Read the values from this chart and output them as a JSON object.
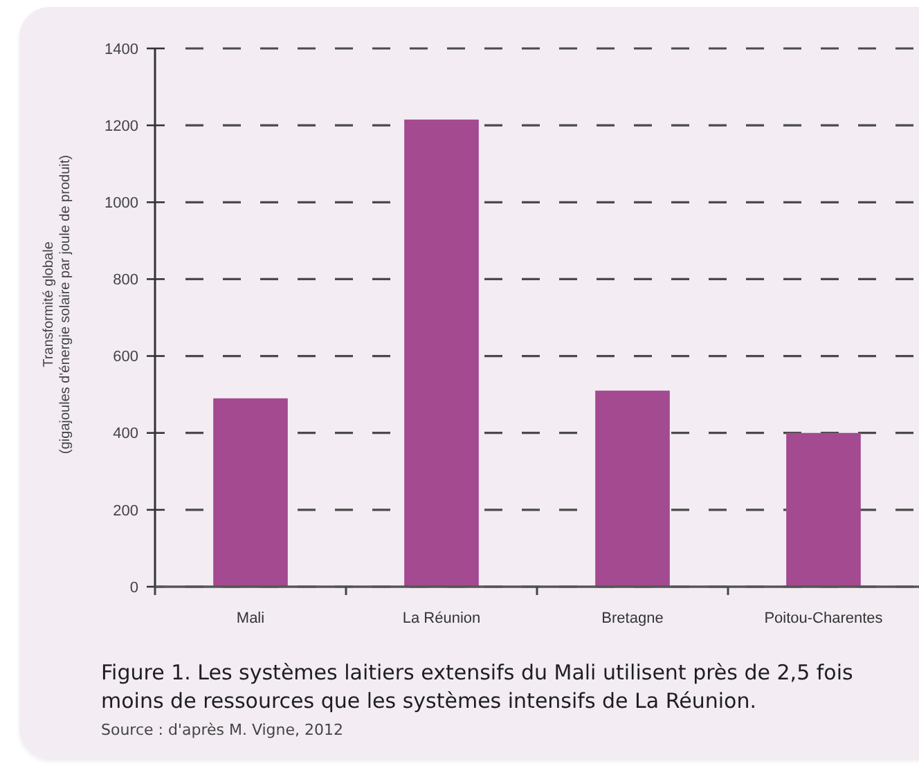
{
  "chart_data": {
    "type": "bar",
    "title": "Figure 1. Les systèmes laitiers extensifs du Mali utilisent près de 2,5 fois moins de ressources que les systèmes intensifs de La Réunion.",
    "ylabel": "Transformité globale\n(gigajoules d'énergie solaire par joule de produit)",
    "annotations": [
      "Source : d'après M. Vigne, 2012"
    ],
    "categories": [
      "Mali",
      "La Réunion",
      "Bretagne",
      "Poitou-Charentes"
    ],
    "values": [
      490,
      1215,
      510,
      400
    ],
    "color": "#a34a90",
    "ylim": [
      0,
      1400
    ],
    "yticks": [
      0,
      200,
      400,
      600,
      800,
      1000,
      1200,
      1400
    ],
    "grid": "y"
  }
}
